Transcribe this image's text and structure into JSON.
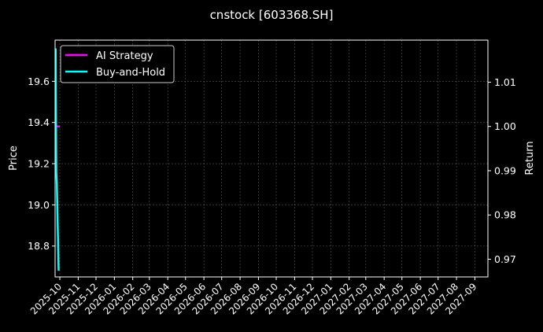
{
  "chart_data": {
    "type": "line",
    "title": "cnstock [603368.SH]",
    "ylabel_left": "Price",
    "ylabel_right": "Return",
    "xlim": [
      "2025-09-23",
      "2027-09-23"
    ],
    "ylim_left": [
      18.65,
      19.8
    ],
    "ylim_right": [
      0.966,
      1.0195
    ],
    "grid": true,
    "legend_position": "top-left",
    "x_tick_labels": [
      "2025-10",
      "2025-11",
      "2025-12",
      "2026-01",
      "2026-02",
      "2026-03",
      "2026-04",
      "2026-05",
      "2026-06",
      "2026-07",
      "2026-08",
      "2026-09",
      "2026-10",
      "2026-11",
      "2026-12",
      "2027-01",
      "2027-02",
      "2027-03",
      "2027-04",
      "2027-05",
      "2027-06",
      "2027-07",
      "2027-08",
      "2027-09"
    ],
    "y_left_ticks": [
      18.8,
      19.0,
      19.2,
      19.4,
      19.6
    ],
    "y_right_ticks": [
      0.97,
      0.98,
      0.99,
      1.0,
      1.01
    ],
    "series": [
      {
        "name": "AI Strategy",
        "axis": "right",
        "color": "#ff00ff",
        "points": [
          [
            "2025-09-24",
            1.0
          ],
          [
            "2025-10-01",
            1.0
          ]
        ]
      },
      {
        "name": "Buy-and-Hold",
        "axis": "left",
        "color": "#00ffff",
        "points": [
          [
            "2025-09-24",
            19.76
          ],
          [
            "2025-09-25",
            19.16
          ],
          [
            "2025-09-26",
            19.1
          ],
          [
            "2025-09-29",
            18.68
          ]
        ]
      }
    ],
    "price_color": "#00aa00"
  }
}
